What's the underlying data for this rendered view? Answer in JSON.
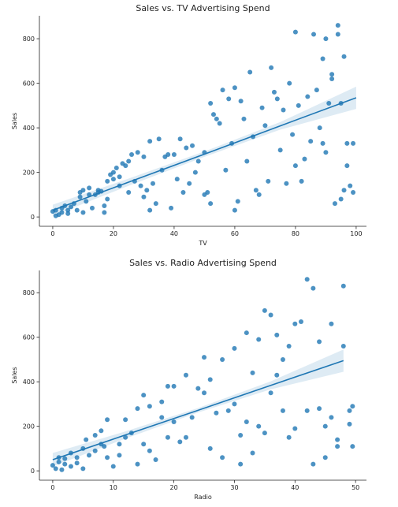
{
  "chart_data": [
    {
      "type": "scatter",
      "title": "Sales vs. TV Advertising Spend",
      "xlabel": "TV",
      "ylabel": "Sales",
      "color": "#1f77b4",
      "xlim": [
        -4.4,
        103.4
      ],
      "ylim": [
        -42,
        903
      ],
      "xticks": [
        0,
        20,
        40,
        60,
        80,
        100
      ],
      "yticks": [
        0,
        200,
        400,
        600,
        800
      ],
      "x": [
        0,
        1,
        1,
        2,
        3,
        3,
        4,
        5,
        5,
        6,
        7,
        8,
        9,
        9,
        10,
        10,
        11,
        12,
        12,
        13,
        14,
        15,
        15,
        16,
        17,
        17,
        18,
        18,
        19,
        20,
        20,
        21,
        22,
        22,
        23,
        24,
        25,
        25,
        26,
        27,
        28,
        29,
        30,
        30,
        31,
        32,
        32,
        33,
        34,
        35,
        36,
        37,
        38,
        39,
        40,
        41,
        42,
        43,
        44,
        45,
        46,
        47,
        48,
        50,
        50,
        51,
        52,
        52,
        53,
        54,
        55,
        56,
        57,
        58,
        59,
        60,
        60,
        61,
        62,
        63,
        64,
        65,
        66,
        67,
        68,
        69,
        70,
        71,
        72,
        73,
        74,
        75,
        76,
        77,
        78,
        79,
        80,
        80,
        81,
        82,
        83,
        84,
        85,
        86,
        87,
        88,
        89,
        89,
        90,
        90,
        91,
        92,
        92,
        93,
        94,
        94,
        95,
        95,
        96,
        96,
        97,
        97,
        98,
        99,
        99
      ],
      "values": [
        25,
        5,
        30,
        10,
        40,
        20,
        50,
        30,
        15,
        45,
        60,
        30,
        110,
        90,
        120,
        20,
        70,
        100,
        130,
        40,
        100,
        110,
        120,
        115,
        20,
        50,
        80,
        160,
        190,
        200,
        170,
        220,
        140,
        180,
        240,
        230,
        250,
        110,
        280,
        160,
        290,
        140,
        270,
        90,
        120,
        340,
        30,
        150,
        60,
        350,
        210,
        270,
        280,
        40,
        280,
        170,
        350,
        110,
        310,
        150,
        320,
        200,
        250,
        100,
        290,
        110,
        60,
        510,
        460,
        440,
        420,
        570,
        210,
        530,
        330,
        580,
        30,
        70,
        520,
        440,
        250,
        650,
        360,
        120,
        100,
        490,
        410,
        160,
        670,
        560,
        530,
        300,
        480,
        150,
        600,
        370,
        830,
        230,
        500,
        160,
        260,
        540,
        340,
        820,
        570,
        400,
        710,
        330,
        800,
        290,
        510,
        620,
        640,
        60,
        860,
        820,
        510,
        80,
        720,
        120,
        230,
        330,
        140,
        110,
        330
      ],
      "regression": {
        "x": [
          0,
          25,
          50,
          75,
          100
        ],
        "values": [
          30,
          156,
          282,
          409,
          535
        ],
        "lower": [
          5,
          140,
          270,
          392,
          485
        ],
        "upper": [
          55,
          172,
          294,
          426,
          585
        ]
      }
    },
    {
      "type": "scatter",
      "title": "Sales vs. Radio Advertising Spend",
      "xlabel": "Radio",
      "ylabel": "Sales",
      "color": "#1f77b4",
      "xlim": [
        -2.2,
        51.8
      ],
      "ylim": [
        -42,
        900
      ],
      "xticks": [
        0,
        10,
        20,
        30,
        40,
        50
      ],
      "yticks": [
        0,
        200,
        400,
        600,
        800
      ],
      "x": [
        0,
        0.5,
        1,
        1,
        1.5,
        2,
        2,
        3,
        3,
        4,
        4,
        5,
        5,
        5.5,
        6,
        7,
        7,
        8,
        8,
        8.5,
        9,
        9,
        10,
        11,
        11,
        12,
        12,
        13,
        14,
        14,
        15,
        15,
        16,
        16,
        17,
        18,
        18,
        19,
        19,
        20,
        20,
        21,
        22,
        22,
        23,
        24,
        25,
        25,
        26,
        26,
        27,
        28,
        28,
        29,
        30,
        30,
        31,
        31,
        32,
        32,
        33,
        33,
        34,
        34,
        35,
        35,
        36,
        36,
        37,
        37,
        38,
        38,
        39,
        39,
        40,
        40,
        41,
        42,
        42,
        43,
        43,
        44,
        44,
        45,
        45,
        46,
        46,
        47,
        47,
        48,
        48,
        49,
        49,
        49.5,
        49.5
      ],
      "values": [
        25,
        10,
        40,
        60,
        5,
        30,
        55,
        20,
        80,
        60,
        35,
        100,
        10,
        140,
        70,
        160,
        90,
        120,
        180,
        110,
        230,
        60,
        20,
        120,
        70,
        150,
        230,
        170,
        30,
        280,
        340,
        120,
        290,
        90,
        50,
        240,
        310,
        380,
        150,
        380,
        220,
        130,
        430,
        150,
        240,
        370,
        510,
        350,
        410,
        100,
        260,
        500,
        60,
        270,
        550,
        300,
        160,
        30,
        620,
        220,
        440,
        80,
        590,
        200,
        720,
        170,
        700,
        350,
        610,
        430,
        500,
        270,
        150,
        560,
        660,
        190,
        670,
        860,
        270,
        820,
        30,
        580,
        280,
        60,
        200,
        660,
        240,
        140,
        110,
        830,
        560,
        210,
        270,
        290,
        110
      ],
      "regression": {
        "x": [
          0,
          12,
          24,
          36,
          48
        ],
        "values": [
          50,
          161,
          272,
          384,
          495
        ],
        "lower": [
          20,
          145,
          262,
          366,
          445
        ],
        "upper": [
          80,
          177,
          282,
          402,
          545
        ]
      }
    }
  ]
}
